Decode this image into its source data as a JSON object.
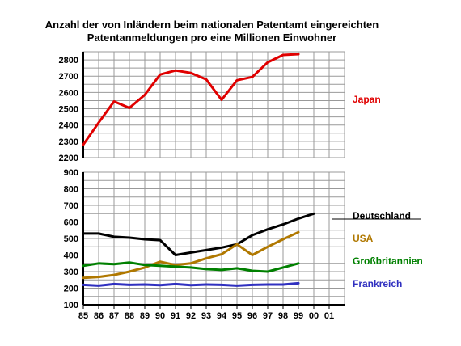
{
  "chart_data": {
    "type": "line",
    "title_lines": [
      "Anzahl der von Inländern beim nationalen Patentamt eingereichten",
      "Patentanmeldungen pro eine Millionen Einwohner"
    ],
    "x_ticks": [
      "85",
      "86",
      "87",
      "88",
      "89",
      "90",
      "91",
      "92",
      "93",
      "94",
      "95",
      "96",
      "97",
      "98",
      "99",
      "00",
      "01"
    ],
    "grid": true,
    "panels": [
      {
        "name": "upper",
        "ylim": [
          2200,
          2850
        ],
        "y_ticks": [
          2200,
          2300,
          2400,
          2500,
          2600,
          2700,
          2800
        ],
        "series": [
          {
            "name": "Japan",
            "color": "#e00000",
            "x": [
              "85",
              "86",
              "87",
              "88",
              "89",
              "90",
              "91",
              "92",
              "93",
              "94",
              "95",
              "96",
              "97",
              "98",
              "99"
            ],
            "values": [
              2280,
              2415,
              2545,
              2505,
              2585,
              2710,
              2735,
              2720,
              2680,
              2555,
              2675,
              2695,
              2785,
              2830,
              2835
            ]
          }
        ]
      },
      {
        "name": "lower",
        "ylim": [
          100,
          900
        ],
        "y_ticks": [
          100,
          200,
          300,
          400,
          500,
          600,
          700,
          800,
          900
        ],
        "series": [
          {
            "name": "Deutschland",
            "color": "#000000",
            "x": [
              "85",
              "86",
              "87",
              "88",
              "89",
              "90",
              "91",
              "92",
              "93",
              "94",
              "95",
              "96",
              "97",
              "98",
              "99",
              "00"
            ],
            "values": [
              530,
              530,
              510,
              505,
              495,
              490,
              400,
              415,
              430,
              445,
              465,
              520,
              555,
              585,
              620,
              650
            ]
          },
          {
            "name": "USA",
            "color": "#b07800",
            "x": [
              "85",
              "86",
              "87",
              "88",
              "89",
              "90",
              "91",
              "92",
              "93",
              "94",
              "95",
              "96",
              "97",
              "98",
              "99"
            ],
            "values": [
              262,
              268,
              280,
              300,
              325,
              360,
              340,
              350,
              380,
              405,
              465,
              400,
              450,
              495,
              538
            ]
          },
          {
            "name": "Großbritannien",
            "color": "#008000",
            "x": [
              "85",
              "86",
              "87",
              "88",
              "89",
              "90",
              "91",
              "92",
              "93",
              "94",
              "95",
              "96",
              "97",
              "98",
              "99"
            ],
            "values": [
              335,
              350,
              345,
              355,
              340,
              335,
              330,
              325,
              315,
              310,
              320,
              305,
              300,
              325,
              350
            ]
          },
          {
            "name": "Frankreich",
            "color": "#3030c0",
            "x": [
              "85",
              "86",
              "87",
              "88",
              "89",
              "90",
              "91",
              "92",
              "93",
              "94",
              "95",
              "96",
              "97",
              "98",
              "99"
            ],
            "values": [
              220,
              215,
              225,
              220,
              222,
              218,
              225,
              218,
              222,
              220,
              215,
              220,
              222,
              222,
              230
            ]
          }
        ]
      }
    ]
  }
}
